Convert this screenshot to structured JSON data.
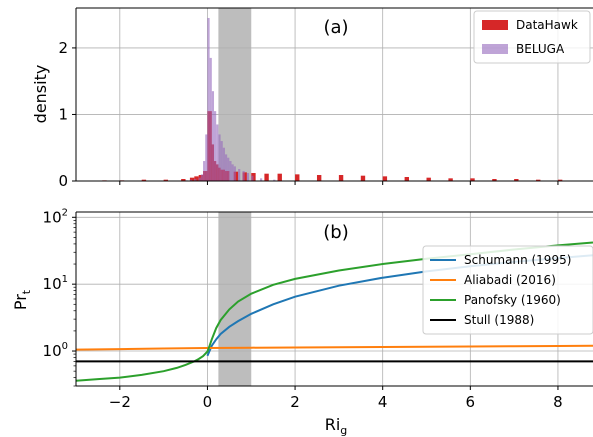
{
  "chart_data": [
    {
      "panel_label": "(a)",
      "type": "histogram",
      "ylabel": "density",
      "xlim": [
        -3,
        8.8
      ],
      "ylim": [
        0,
        2.6
      ],
      "x_ticks": [
        -2,
        0,
        2,
        4,
        6,
        8
      ],
      "y_ticks": [
        0,
        1,
        2
      ],
      "grid": true,
      "legend_position": "top-right",
      "shaded_band": {
        "x0": 0.25,
        "x1": 1.0,
        "color": "#bdbdbd"
      },
      "series": [
        {
          "name": "DataHawk",
          "color": "#d62728",
          "bin_width": 0.1,
          "bins_start": [
            -2.4,
            -2.0,
            -1.5,
            -1.0,
            -0.6,
            -0.4,
            -0.3,
            -0.2,
            -0.1,
            0.0,
            0.05,
            0.1,
            0.15,
            0.2,
            0.3,
            0.4,
            0.6,
            0.8,
            1.0,
            1.3,
            1.6,
            2.0,
            2.5,
            3.0,
            3.5,
            4.0,
            4.5,
            5.0,
            5.5,
            6.0,
            6.5,
            7.0,
            7.5,
            8.0
          ],
          "values": [
            0.01,
            0.01,
            0.02,
            0.02,
            0.03,
            0.05,
            0.07,
            0.09,
            0.15,
            1.05,
            0.55,
            0.3,
            0.25,
            0.2,
            0.17,
            0.15,
            0.14,
            0.13,
            0.12,
            0.11,
            0.11,
            0.1,
            0.09,
            0.09,
            0.08,
            0.07,
            0.06,
            0.05,
            0.04,
            0.04,
            0.03,
            0.03,
            0.02,
            0.02
          ]
        },
        {
          "name": "BELUGA",
          "color": "#9467bd",
          "bin_width": 0.05,
          "bins_start": [
            -0.5,
            -0.4,
            -0.3,
            -0.2,
            -0.15,
            -0.1,
            -0.05,
            0.0,
            0.05,
            0.1,
            0.15,
            0.2,
            0.25,
            0.3,
            0.35,
            0.4,
            0.45,
            0.5,
            0.55,
            0.6,
            0.7,
            0.8,
            0.9,
            1.0,
            1.2,
            1.5
          ],
          "values": [
            0.01,
            0.02,
            0.03,
            0.05,
            0.1,
            0.3,
            0.7,
            2.45,
            1.85,
            1.35,
            1.05,
            0.85,
            0.7,
            0.6,
            0.5,
            0.4,
            0.35,
            0.3,
            0.25,
            0.22,
            0.18,
            0.15,
            0.12,
            0.08,
            0.04,
            0.02
          ]
        }
      ]
    },
    {
      "panel_label": "(b)",
      "type": "line",
      "xlabel_base": "Ri",
      "xlabel_sub": "g",
      "ylabel_base": "Pr",
      "ylabel_sub": "t",
      "xlim": [
        -3,
        8.8
      ],
      "ylim": [
        0.3,
        120
      ],
      "y_scale": "log",
      "x_ticks": [
        -2,
        0,
        2,
        4,
        6,
        8
      ],
      "y_ticks": [
        1,
        10,
        100
      ],
      "y_tick_base": "10",
      "y_tick_exponents": [
        "0",
        "1",
        "2"
      ],
      "grid": true,
      "legend_position": "center-right",
      "shaded_band": {
        "x0": 0.25,
        "x1": 1.0,
        "color": "#bdbdbd"
      },
      "series": [
        {
          "name": "Schumann (1995)",
          "color": "#1f77b4",
          "x": [
            0.0,
            0.1,
            0.2,
            0.3,
            0.5,
            0.7,
            1.0,
            1.5,
            2.0,
            3.0,
            4.0,
            5.0,
            6.0,
            7.0,
            8.0,
            8.8
          ],
          "y": [
            0.85,
            1.2,
            1.5,
            1.8,
            2.3,
            2.8,
            3.6,
            5.0,
            6.5,
            9.5,
            12.5,
            15.5,
            18.5,
            21.5,
            24.5,
            27.0
          ]
        },
        {
          "name": "Aliabadi (2016)",
          "color": "#ff7f0e",
          "x": [
            -3,
            -2,
            -1,
            0,
            1,
            2,
            3,
            4,
            5,
            6,
            7,
            8,
            8.8
          ],
          "y": [
            1.05,
            1.07,
            1.09,
            1.11,
            1.12,
            1.13,
            1.14,
            1.15,
            1.16,
            1.17,
            1.18,
            1.19,
            1.2
          ]
        },
        {
          "name": "Panofsky (1960)",
          "color": "#2ca02c",
          "x": [
            -3.0,
            -2.5,
            -2.0,
            -1.5,
            -1.0,
            -0.7,
            -0.5,
            -0.3,
            -0.2,
            -0.1,
            0.0,
            0.05,
            0.1,
            0.2,
            0.3,
            0.5,
            0.7,
            1.0,
            1.5,
            2.0,
            3.0,
            4.0,
            5.0,
            6.0,
            7.0,
            8.0,
            8.8
          ],
          "y": [
            0.36,
            0.38,
            0.4,
            0.44,
            0.5,
            0.56,
            0.62,
            0.7,
            0.76,
            0.84,
            0.98,
            1.2,
            1.5,
            2.2,
            2.9,
            4.2,
            5.5,
            7.2,
            9.8,
            12.0,
            16.0,
            20.0,
            24.0,
            28.0,
            33.0,
            38.0,
            42.0
          ]
        },
        {
          "name": "Stull (1988)",
          "color": "#000000",
          "x": [
            -3,
            8.8
          ],
          "y": [
            0.7,
            0.7
          ]
        }
      ]
    }
  ]
}
